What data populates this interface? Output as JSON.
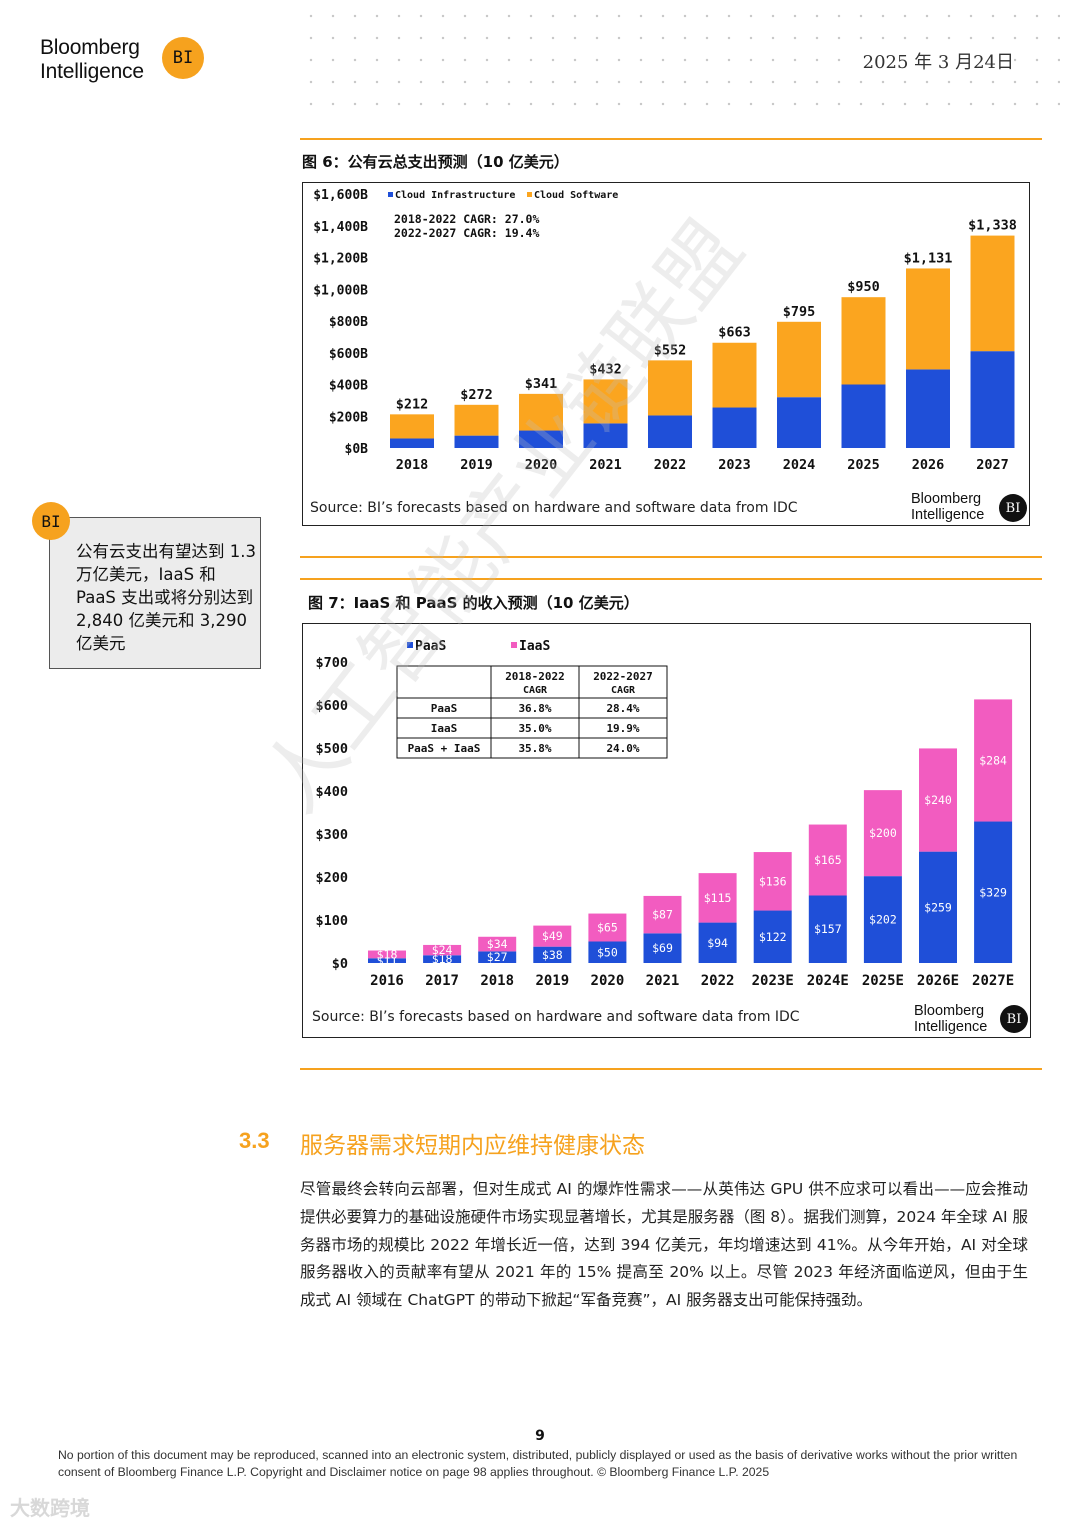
{
  "header": {
    "logo_line1": "Bloomberg",
    "logo_line2": "Intelligence",
    "logo_badge": "BI",
    "date": "2025 年 3 月24日"
  },
  "figure6": {
    "title": "图 6：公有云总支出预测（10 亿美元）",
    "source": "Source: BI’s forecasts based on hardware and software data from IDC",
    "brand_line1": "Bloomberg",
    "brand_line2": "Intelligence",
    "brand_badge": "BI"
  },
  "figure7": {
    "title": "图 7：IaaS 和 PaaS 的收入预测（10 亿美元）",
    "source": "Source: BI’s forecasts based on hardware and software data from IDC",
    "brand_line1": "Bloomberg",
    "brand_line2": "Intelligence",
    "brand_badge": "BI"
  },
  "callout": {
    "badge": "BI",
    "text": "公有云支出有望达到 1.3 万亿美元，IaaS 和 PaaS 支出或将分别达到 2,840 亿美元和 3,290 亿美元"
  },
  "section": {
    "number": "3.3",
    "title": "服务器需求短期内应维持健康状态",
    "paragraph": "尽管最终会转向云部署，但对生成式 AI 的爆炸性需求——从英伟达 GPU 供不应求可以看出——应会推动提供必要算力的基础设施硬件市场实现显著增长，尤其是服务器（图 8）。据我们测算，2024 年全球 AI 服务器市场的规模比 2022 年增长近一倍，达到 394 亿美元，年均增速达到 41%。从今年开始，AI 对全球服务器收入的贡献率有望从 2021 年的 15% 提高至 20% 以上。尽管 2023 年经济面临逆风，但由于生成式 AI 领域在 ChatGPT 的带动下掀起“军备竞赛”，AI 服务器支出可能保持强劲。"
  },
  "footer": {
    "page_number": "9",
    "disclaimer": "No portion of this document may be reproduced, scanned into an electronic system, distributed, publicly displayed or used as the basis of derivative works without the prior written consent of Bloomberg Finance L.P. Copyright and Disclaimer notice on page 98 applies throughout. © Bloomberg Finance L.P. 2025",
    "corner_mark": "大数跨境",
    "watermark": "人工智能产业链联盟"
  },
  "chart_data": [
    {
      "type": "bar",
      "stacked": true,
      "categories": [
        "2018",
        "2019",
        "2020",
        "2021",
        "2022",
        "2023",
        "2024",
        "2025",
        "2026",
        "2027"
      ],
      "series": [
        {
          "name": "Cloud Infrastructure",
          "color": "#1f4fd8",
          "values": [
            60,
            78,
            110,
            155,
            205,
            255,
            320,
            400,
            495,
            610
          ]
        },
        {
          "name": "Cloud Software",
          "color": "#fba51f",
          "values": [
            152,
            194,
            231,
            277,
            347,
            408,
            475,
            550,
            636,
            728
          ]
        }
      ],
      "totals": [
        212,
        272,
        341,
        432,
        552,
        663,
        795,
        950,
        1131,
        1338
      ],
      "total_labels": [
        "$212",
        "$272",
        "$341",
        "$432",
        "$552",
        "$663",
        "$795",
        "$950",
        "$1,131",
        "$1,338"
      ],
      "y_ticks": [
        0,
        200,
        400,
        600,
        800,
        1000,
        1200,
        1400,
        1600
      ],
      "y_tick_labels": [
        "$0B",
        "$200B",
        "$400B",
        "$600B",
        "$800B",
        "$1,000B",
        "$1,200B",
        "$1,400B",
        "$1,600B"
      ],
      "ylim": [
        0,
        1600
      ],
      "annotations": [
        "2018-2022 CAGR: 27.0%",
        "2022-2027 CAGR: 19.4%"
      ],
      "legend_position": "top-left",
      "grid": false
    },
    {
      "type": "bar",
      "stacked": true,
      "categories": [
        "2016",
        "2017",
        "2018",
        "2019",
        "2020",
        "2021",
        "2022",
        "2023E",
        "2024E",
        "2025E",
        "2026E",
        "2027E"
      ],
      "series": [
        {
          "name": "PaaS",
          "color": "#1f4fd8",
          "values": [
            11,
            18,
            27,
            38,
            50,
            69,
            94,
            122,
            157,
            202,
            259,
            329
          ],
          "labels": [
            "$11",
            "$18",
            "$27",
            "$38",
            "$50",
            "$69",
            "$94",
            "$122",
            "$157",
            "$202",
            "$259",
            "$329"
          ]
        },
        {
          "name": "IaaS",
          "color": "#f25cc0",
          "values": [
            18,
            24,
            34,
            49,
            65,
            87,
            115,
            136,
            165,
            200,
            240,
            284
          ],
          "labels": [
            "$18",
            "$24",
            "$34",
            "$49",
            "$65",
            "$87",
            "$115",
            "$136",
            "$165",
            "$200",
            "$240",
            "$284"
          ]
        }
      ],
      "y_ticks": [
        0,
        100,
        200,
        300,
        400,
        500,
        600,
        700
      ],
      "y_tick_labels": [
        "$0",
        "$100",
        "$200",
        "$300",
        "$400",
        "$500",
        "$600",
        "$700"
      ],
      "ylim": [
        0,
        700
      ],
      "legend_position": "top-left",
      "grid": false,
      "cagr_table": {
        "headers": [
          "",
          "2018-2022 CAGR",
          "2022-2027 CAGR"
        ],
        "rows": [
          [
            "PaaS",
            "36.8%",
            "28.4%"
          ],
          [
            "IaaS",
            "35.0%",
            "19.9%"
          ],
          [
            "PaaS + IaaS",
            "35.8%",
            "24.0%"
          ]
        ]
      }
    }
  ]
}
